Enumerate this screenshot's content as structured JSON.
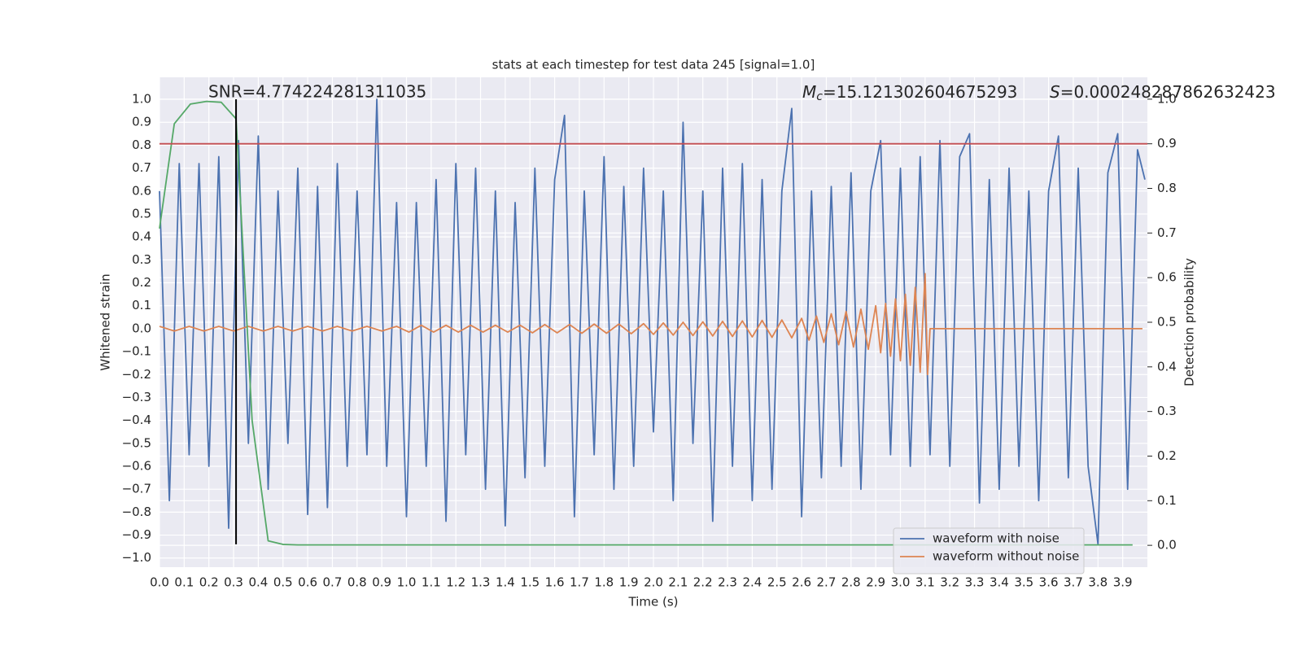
{
  "chart_data": {
    "type": "line",
    "title": "stats at each timestep for test data 245 [signal=1.0]",
    "x_label": "Time (s)",
    "y_label": "Whitened strain",
    "y2_label": "Detection probability",
    "annotations": {
      "snr": "SNR=4.774224281311035",
      "mc": {
        "symbol": "M",
        "sub": "c",
        "text": "=15.121302604675293"
      },
      "s": {
        "symbol": "S",
        "text": "=0.000248287862632423"
      }
    },
    "xlim": [
      0,
      4.0
    ],
    "ylim": [
      -1.04,
      1.096
    ],
    "y2lim": [
      -0.049,
      1.049
    ],
    "grid": true,
    "legend": "lower right",
    "xticks": [
      {
        "value": 0,
        "label": "0.0"
      },
      {
        "value": 0.1,
        "label": "0.1"
      },
      {
        "value": 0.2,
        "label": "0.2"
      },
      {
        "value": 0.3,
        "label": "0.3"
      },
      {
        "value": 0.4,
        "label": "0.4"
      },
      {
        "value": 0.5,
        "label": "0.5"
      },
      {
        "value": 0.6,
        "label": "0.6"
      },
      {
        "value": 0.7,
        "label": "0.7"
      },
      {
        "value": 0.8,
        "label": "0.8"
      },
      {
        "value": 0.9,
        "label": "0.9"
      },
      {
        "value": 1,
        "label": "1.0"
      },
      {
        "value": 1.1,
        "label": "1.1"
      },
      {
        "value": 1.2,
        "label": "1.2"
      },
      {
        "value": 1.3,
        "label": "1.3"
      },
      {
        "value": 1.4,
        "label": "1.4"
      },
      {
        "value": 1.5,
        "label": "1.5"
      },
      {
        "value": 1.6,
        "label": "1.6"
      },
      {
        "value": 1.7,
        "label": "1.7"
      },
      {
        "value": 1.8,
        "label": "1.8"
      },
      {
        "value": 1.9,
        "label": "1.9"
      },
      {
        "value": 2,
        "label": "2.0"
      },
      {
        "value": 2.1,
        "label": "2.1"
      },
      {
        "value": 2.2,
        "label": "2.2"
      },
      {
        "value": 2.3,
        "label": "2.3"
      },
      {
        "value": 2.4,
        "label": "2.4"
      },
      {
        "value": 2.5,
        "label": "2.5"
      },
      {
        "value": 2.6,
        "label": "2.6"
      },
      {
        "value": 2.7,
        "label": "2.7"
      },
      {
        "value": 2.8,
        "label": "2.8"
      },
      {
        "value": 2.9,
        "label": "2.9"
      },
      {
        "value": 3,
        "label": "3.0"
      },
      {
        "value": 3.1,
        "label": "3.1"
      },
      {
        "value": 3.2,
        "label": "3.2"
      },
      {
        "value": 3.3,
        "label": "3.3"
      },
      {
        "value": 3.4,
        "label": "3.4"
      },
      {
        "value": 3.5,
        "label": "3.5"
      },
      {
        "value": 3.6,
        "label": "3.6"
      },
      {
        "value": 3.7,
        "label": "3.7"
      },
      {
        "value": 3.8,
        "label": "3.8"
      },
      {
        "value": 3.9,
        "label": "3.9"
      }
    ],
    "yticks": [
      {
        "value": -1,
        "label": "−1.0"
      },
      {
        "value": -0.9,
        "label": "−0.9"
      },
      {
        "value": -0.8,
        "label": "−0.8"
      },
      {
        "value": -0.7,
        "label": "−0.7"
      },
      {
        "value": -0.6,
        "label": "−0.6"
      },
      {
        "value": -0.5,
        "label": "−0.5"
      },
      {
        "value": -0.4,
        "label": "−0.4"
      },
      {
        "value": -0.3,
        "label": "−0.3"
      },
      {
        "value": -0.2,
        "label": "−0.2"
      },
      {
        "value": -0.1,
        "label": "−0.1"
      },
      {
        "value": 0,
        "label": "0.0"
      },
      {
        "value": 0.1,
        "label": "0.1"
      },
      {
        "value": 0.2,
        "label": "0.2"
      },
      {
        "value": 0.3,
        "label": "0.3"
      },
      {
        "value": 0.4,
        "label": "0.4"
      },
      {
        "value": 0.5,
        "label": "0.5"
      },
      {
        "value": 0.6,
        "label": "0.6"
      },
      {
        "value": 0.7,
        "label": "0.7"
      },
      {
        "value": 0.8,
        "label": "0.8"
      },
      {
        "value": 0.9,
        "label": "0.9"
      },
      {
        "value": 1,
        "label": "1.0"
      }
    ],
    "y2ticks": [
      {
        "value": 0,
        "label": "0.0"
      },
      {
        "value": 0.1,
        "label": "0.1"
      },
      {
        "value": 0.2,
        "label": "0.2"
      },
      {
        "value": 0.3,
        "label": "0.3"
      },
      {
        "value": 0.4,
        "label": "0.4"
      },
      {
        "value": 0.5,
        "label": "0.5"
      },
      {
        "value": 0.6,
        "label": "0.6"
      },
      {
        "value": 0.7,
        "label": "0.7"
      },
      {
        "value": 0.8,
        "label": "0.8"
      },
      {
        "value": 0.9,
        "label": "0.9"
      },
      {
        "value": 1,
        "label": "1.0"
      }
    ],
    "series": [
      {
        "name": "waveform with noise",
        "color": "#4c72b0",
        "x": [
          0,
          0.04,
          0.08,
          0.12,
          0.16,
          0.2,
          0.24,
          0.28,
          0.32,
          0.36,
          0.4,
          0.44,
          0.48,
          0.52,
          0.56,
          0.6,
          0.64,
          0.68,
          0.72,
          0.76,
          0.8,
          0.84,
          0.88,
          0.92,
          0.96,
          1,
          1.04,
          1.08,
          1.12,
          1.16,
          1.2,
          1.24,
          1.28,
          1.32,
          1.36,
          1.4,
          1.44,
          1.48,
          1.52,
          1.56,
          1.6,
          1.64,
          1.68,
          1.72,
          1.76,
          1.8,
          1.84,
          1.88,
          1.92,
          1.96,
          2,
          2.04,
          2.08,
          2.12,
          2.16,
          2.2,
          2.24,
          2.28,
          2.32,
          2.36,
          2.4,
          2.44,
          2.48,
          2.52,
          2.56,
          2.6,
          2.64,
          2.68,
          2.72,
          2.76,
          2.8,
          2.84,
          2.88,
          2.92,
          2.96,
          3,
          3.04,
          3.08,
          3.12,
          3.16,
          3.2,
          3.24,
          3.28,
          3.32,
          3.36,
          3.4,
          3.44,
          3.48,
          3.52,
          3.56,
          3.6,
          3.64,
          3.68,
          3.72,
          3.76,
          3.8,
          3.84,
          3.88,
          3.92,
          3.96,
          3.99
        ],
        "values": [
          0.6,
          -0.75,
          0.72,
          -0.55,
          0.72,
          -0.6,
          0.75,
          -0.87,
          0.82,
          -0.5,
          0.84,
          -0.7,
          0.6,
          -0.5,
          0.7,
          -0.81,
          0.62,
          -0.78,
          0.72,
          -0.6,
          0.6,
          -0.55,
          1.0,
          -0.6,
          0.55,
          -0.82,
          0.55,
          -0.6,
          0.65,
          -0.84,
          0.72,
          -0.55,
          0.7,
          -0.7,
          0.6,
          -0.86,
          0.55,
          -0.65,
          0.7,
          -0.6,
          0.65,
          0.93,
          -0.82,
          0.6,
          -0.55,
          0.75,
          -0.7,
          0.62,
          -0.6,
          0.7,
          -0.45,
          0.6,
          -0.75,
          0.9,
          -0.5,
          0.6,
          -0.84,
          0.7,
          -0.6,
          0.72,
          -0.75,
          0.65,
          -0.7,
          0.6,
          0.96,
          -0.82,
          0.6,
          -0.65,
          0.62,
          -0.6,
          0.68,
          -0.7,
          0.6,
          0.82,
          -0.55,
          0.7,
          -0.6,
          0.75,
          -0.55,
          0.82,
          -0.6,
          0.75,
          0.85,
          -0.76,
          0.65,
          -0.7,
          0.7,
          -0.6,
          0.6,
          -0.75,
          0.6,
          0.84,
          -0.65,
          0.7,
          -0.6,
          -0.94,
          0.68,
          0.85,
          -0.7,
          0.78,
          0.65
        ]
      },
      {
        "name": "waveform without noise",
        "color": "#dd8452",
        "x": [
          0,
          0.06,
          0.12,
          0.18,
          0.24,
          0.3,
          0.36,
          0.42,
          0.48,
          0.54,
          0.6,
          0.66,
          0.72,
          0.78,
          0.84,
          0.9,
          0.96,
          1.01,
          1.06,
          1.11,
          1.16,
          1.21,
          1.26,
          1.31,
          1.36,
          1.41,
          1.46,
          1.51,
          1.56,
          1.61,
          1.66,
          1.71,
          1.76,
          1.81,
          1.86,
          1.91,
          1.96,
          2,
          2.04,
          2.08,
          2.12,
          2.16,
          2.2,
          2.24,
          2.28,
          2.32,
          2.36,
          2.4,
          2.44,
          2.48,
          2.52,
          2.56,
          2.6,
          2.63,
          2.66,
          2.69,
          2.72,
          2.75,
          2.78,
          2.81,
          2.84,
          2.87,
          2.9,
          2.92,
          2.94,
          2.96,
          2.98,
          3,
          3.02,
          3.04,
          3.06,
          3.08,
          3.1,
          3.11,
          3.12,
          3.98
        ],
        "values": [
          0.01,
          -0.01,
          0.01,
          -0.01,
          0.01,
          -0.01,
          0.01,
          -0.01,
          0.01,
          -0.01,
          0.01,
          -0.01,
          0.01,
          -0.01,
          0.01,
          -0.01,
          0.01,
          -0.015,
          0.015,
          -0.015,
          0.015,
          -0.015,
          0.015,
          -0.015,
          0.015,
          -0.015,
          0.015,
          -0.018,
          0.018,
          -0.018,
          0.018,
          -0.02,
          0.02,
          -0.02,
          0.02,
          -0.022,
          0.022,
          -0.025,
          0.025,
          -0.028,
          0.028,
          -0.03,
          0.03,
          -0.032,
          0.032,
          -0.034,
          0.034,
          -0.036,
          0.036,
          -0.038,
          0.038,
          -0.04,
          0.045,
          -0.05,
          0.055,
          -0.06,
          0.065,
          -0.07,
          0.075,
          -0.08,
          0.085,
          -0.09,
          0.1,
          -0.105,
          0.11,
          -0.12,
          0.13,
          -0.14,
          0.15,
          -0.16,
          0.18,
          -0.19,
          0.24,
          -0.2,
          0,
          0
        ]
      },
      {
        "color": "#55a868",
        "axis": "y2",
        "x": [
          0,
          0.06,
          0.125,
          0.19,
          0.25,
          0.31,
          0.375,
          0.44,
          0.5,
          0.56,
          3.94
        ],
        "values": [
          0.71,
          0.945,
          0.989,
          0.995,
          0.993,
          0.956,
          0.28,
          0.01,
          0.002,
          0.001,
          0.001
        ]
      }
    ],
    "hline": {
      "y": 0.9,
      "axis": "y2",
      "color": "#c44e52"
    },
    "vline": {
      "x": 0.31,
      "y": [
        -0.94,
        1.0
      ],
      "color": "#000000"
    }
  }
}
